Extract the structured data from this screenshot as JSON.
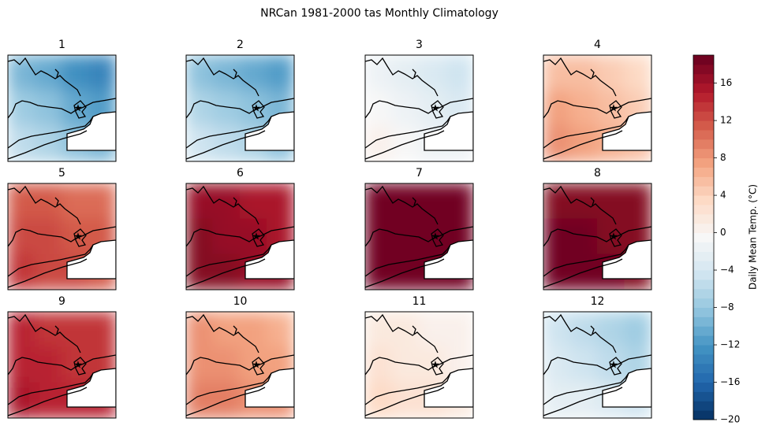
{
  "chart_data": {
    "type": "map-grid",
    "title": "NRCan 1981-2000 tas Monthly Climatology",
    "colorbar_label": "Daily Mean Temp. (°C)",
    "clim": [
      -20,
      19
    ],
    "ticks": [
      {
        "value": -20,
        "label": "−20"
      },
      {
        "value": -16,
        "label": "−16"
      },
      {
        "value": -12,
        "label": "−12"
      },
      {
        "value": -8,
        "label": "−8"
      },
      {
        "value": -4,
        "label": "−4"
      },
      0,
      4,
      8,
      12,
      16
    ],
    "panels": [
      {
        "name": "1",
        "values": [
          [
            -10,
            -11,
            -13,
            -14
          ],
          [
            -8,
            -9,
            -11,
            -12
          ],
          [
            -6,
            -7,
            -9,
            -10
          ]
        ]
      },
      {
        "name": "2",
        "values": [
          [
            -9,
            -10,
            -11,
            -12
          ],
          [
            -7,
            -8,
            -9,
            -10
          ],
          [
            -5,
            -6,
            -7,
            -9
          ]
        ]
      },
      {
        "name": "3",
        "values": [
          [
            -2,
            -3,
            -4,
            -5
          ],
          [
            -1,
            -2,
            -3,
            -4
          ],
          [
            0,
            -1,
            -2,
            -2
          ]
        ]
      },
      {
        "name": "4",
        "values": [
          [
            5,
            5,
            4,
            3
          ],
          [
            7,
            6,
            5,
            4
          ],
          [
            8,
            7,
            6,
            5
          ]
        ]
      },
      {
        "name": "5",
        "values": [
          [
            11,
            11,
            10,
            10
          ],
          [
            12,
            12,
            11,
            11
          ],
          [
            13,
            12,
            12,
            11
          ]
        ]
      },
      {
        "name": "6",
        "values": [
          [
            16,
            16,
            15,
            15
          ],
          [
            17,
            16,
            16,
            15
          ],
          [
            17,
            17,
            16,
            16
          ]
        ]
      },
      {
        "name": "7",
        "values": [
          [
            18,
            18,
            18,
            18
          ],
          [
            19,
            18,
            18,
            18
          ],
          [
            19,
            19,
            18,
            18
          ]
        ]
      },
      {
        "name": "8",
        "values": [
          [
            17,
            17,
            17,
            17
          ],
          [
            18,
            18,
            17,
            17
          ],
          [
            19,
            18,
            18,
            17
          ]
        ]
      },
      {
        "name": "9",
        "values": [
          [
            14,
            13,
            13,
            13
          ],
          [
            14,
            14,
            13,
            13
          ],
          [
            15,
            14,
            14,
            14
          ]
        ]
      },
      {
        "name": "10",
        "values": [
          [
            8,
            7,
            7,
            6
          ],
          [
            8,
            8,
            7,
            7
          ],
          [
            9,
            9,
            8,
            8
          ]
        ]
      },
      {
        "name": "11",
        "values": [
          [
            1,
            1,
            0,
            0
          ],
          [
            2,
            1,
            1,
            0
          ],
          [
            3,
            2,
            2,
            1
          ]
        ]
      },
      {
        "name": "12",
        "values": [
          [
            -5,
            -6,
            -7,
            -8
          ],
          [
            -4,
            -5,
            -6,
            -7
          ],
          [
            -3,
            -3,
            -4,
            -5
          ]
        ]
      }
    ]
  }
}
